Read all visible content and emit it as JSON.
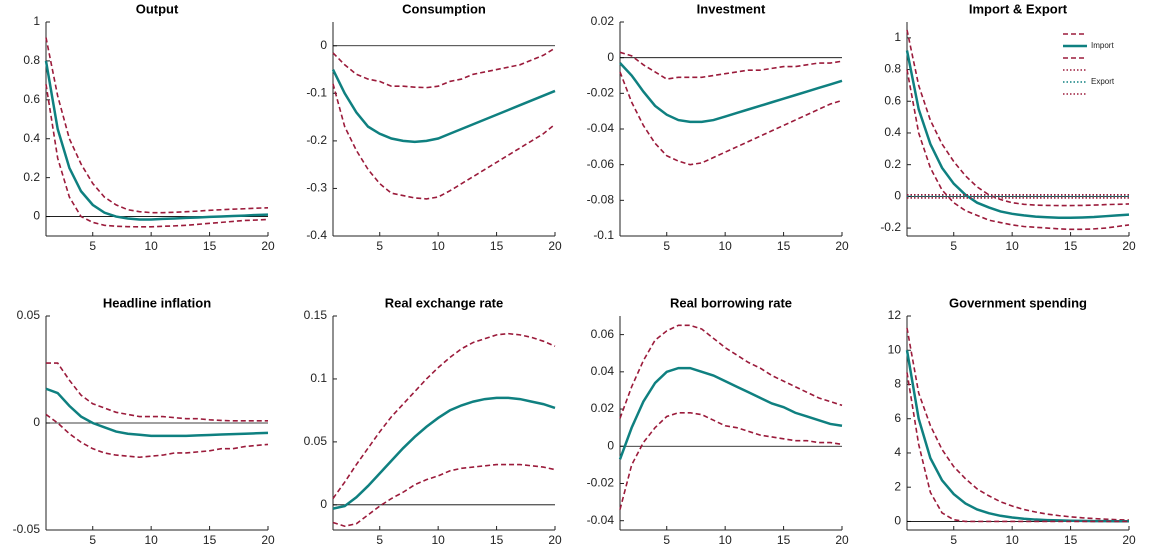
{
  "chart_data": [
    {
      "type": "line",
      "title": "Output",
      "x": [
        1,
        2,
        3,
        4,
        5,
        6,
        7,
        8,
        9,
        10,
        11,
        12,
        13,
        14,
        15,
        16,
        17,
        18,
        19,
        20
      ],
      "xlim": [
        1,
        20
      ],
      "xticks": [
        5,
        10,
        15,
        20
      ],
      "ylim": [
        -0.1,
        1
      ],
      "yticks": [
        0,
        0.2,
        0.4,
        0.6,
        0.8,
        1
      ],
      "series": [
        {
          "style": "dashed",
          "color": "#9b1b3b",
          "values": [
            0.92,
            0.62,
            0.4,
            0.27,
            0.17,
            0.1,
            0.06,
            0.035,
            0.025,
            0.02,
            0.02,
            0.022,
            0.025,
            0.028,
            0.032,
            0.035,
            0.038,
            0.04,
            0.043,
            0.045
          ]
        },
        {
          "style": "solid",
          "color": "#0f8080",
          "values": [
            0.8,
            0.45,
            0.25,
            0.13,
            0.06,
            0.02,
            0,
            -0.01,
            -0.015,
            -0.015,
            -0.012,
            -0.01,
            -0.007,
            -0.005,
            -0.002,
            0,
            0.003,
            0.005,
            0.008,
            0.01
          ]
        },
        {
          "style": "dashed",
          "color": "#9b1b3b",
          "values": [
            0.68,
            0.3,
            0.1,
            0,
            -0.03,
            -0.045,
            -0.05,
            -0.052,
            -0.053,
            -0.053,
            -0.05,
            -0.048,
            -0.045,
            -0.04,
            -0.035,
            -0.03,
            -0.025,
            -0.02,
            -0.018,
            -0.015
          ]
        }
      ]
    },
    {
      "type": "line",
      "title": "Consumption",
      "x": [
        1,
        2,
        3,
        4,
        5,
        6,
        7,
        8,
        9,
        10,
        11,
        12,
        13,
        14,
        15,
        16,
        17,
        18,
        19,
        20
      ],
      "xlim": [
        1,
        20
      ],
      "xticks": [
        5,
        10,
        15,
        20
      ],
      "ylim": [
        -0.4,
        0.05
      ],
      "yticks": [
        -0.4,
        -0.3,
        -0.2,
        -0.1,
        0
      ],
      "series": [
        {
          "style": "dashed",
          "color": "#9b1b3b",
          "values": [
            -0.015,
            -0.04,
            -0.06,
            -0.07,
            -0.075,
            -0.085,
            -0.085,
            -0.087,
            -0.088,
            -0.085,
            -0.075,
            -0.07,
            -0.06,
            -0.055,
            -0.05,
            -0.045,
            -0.04,
            -0.03,
            -0.02,
            -0.005
          ]
        },
        {
          "style": "solid",
          "color": "#0f8080",
          "values": [
            -0.05,
            -0.1,
            -0.14,
            -0.17,
            -0.185,
            -0.195,
            -0.2,
            -0.202,
            -0.2,
            -0.195,
            -0.185,
            -0.175,
            -0.165,
            -0.155,
            -0.145,
            -0.135,
            -0.125,
            -0.115,
            -0.105,
            -0.095
          ]
        },
        {
          "style": "dashed",
          "color": "#9b1b3b",
          "values": [
            -0.08,
            -0.17,
            -0.22,
            -0.26,
            -0.29,
            -0.31,
            -0.315,
            -0.32,
            -0.322,
            -0.318,
            -0.305,
            -0.29,
            -0.275,
            -0.26,
            -0.245,
            -0.23,
            -0.215,
            -0.2,
            -0.185,
            -0.165
          ]
        }
      ]
    },
    {
      "type": "line",
      "title": "Investment",
      "x": [
        1,
        2,
        3,
        4,
        5,
        6,
        7,
        8,
        9,
        10,
        11,
        12,
        13,
        14,
        15,
        16,
        17,
        18,
        19,
        20
      ],
      "xlim": [
        1,
        20
      ],
      "xticks": [
        5,
        10,
        15,
        20
      ],
      "ylim": [
        -0.1,
        0.02
      ],
      "yticks": [
        -0.1,
        -0.08,
        -0.06,
        -0.04,
        -0.02,
        0,
        0.02
      ],
      "series": [
        {
          "style": "dashed",
          "color": "#9b1b3b",
          "values": [
            0.003,
            0.001,
            -0.004,
            -0.008,
            -0.012,
            -0.011,
            -0.011,
            -0.011,
            -0.01,
            -0.009,
            -0.008,
            -0.007,
            -0.007,
            -0.006,
            -0.005,
            -0.005,
            -0.004,
            -0.003,
            -0.003,
            -0.002
          ]
        },
        {
          "style": "solid",
          "color": "#0f8080",
          "values": [
            -0.003,
            -0.01,
            -0.019,
            -0.027,
            -0.032,
            -0.035,
            -0.036,
            -0.036,
            -0.035,
            -0.033,
            -0.031,
            -0.029,
            -0.027,
            -0.025,
            -0.023,
            -0.021,
            -0.019,
            -0.017,
            -0.015,
            -0.013
          ]
        },
        {
          "style": "dashed",
          "color": "#9b1b3b",
          "values": [
            -0.008,
            -0.025,
            -0.038,
            -0.048,
            -0.055,
            -0.058,
            -0.06,
            -0.059,
            -0.056,
            -0.053,
            -0.05,
            -0.047,
            -0.044,
            -0.041,
            -0.038,
            -0.035,
            -0.032,
            -0.029,
            -0.026,
            -0.024
          ]
        }
      ]
    },
    {
      "type": "line",
      "title": "Import & Export",
      "x": [
        1,
        2,
        3,
        4,
        5,
        6,
        7,
        8,
        9,
        10,
        11,
        12,
        13,
        14,
        15,
        16,
        17,
        18,
        19,
        20
      ],
      "xlim": [
        1,
        20
      ],
      "xticks": [
        5,
        10,
        15,
        20
      ],
      "ylim": [
        -0.25,
        1.1
      ],
      "yticks": [
        -0.2,
        0,
        0.2,
        0.4,
        0.6,
        0.8,
        1
      ],
      "legend": "upper right",
      "series": [
        {
          "style": "dashed",
          "color": "#9b1b3b",
          "values": [
            1.05,
            0.7,
            0.48,
            0.33,
            0.22,
            0.13,
            0.06,
            0.01,
            -0.02,
            -0.04,
            -0.05,
            -0.055,
            -0.057,
            -0.058,
            -0.058,
            -0.057,
            -0.055,
            -0.052,
            -0.05,
            -0.048
          ]
        },
        {
          "name": "Import",
          "style": "solid",
          "color": "#0f8080",
          "values": [
            0.92,
            0.55,
            0.33,
            0.18,
            0.08,
            0.01,
            -0.04,
            -0.07,
            -0.095,
            -0.11,
            -0.12,
            -0.128,
            -0.132,
            -0.135,
            -0.135,
            -0.133,
            -0.13,
            -0.125,
            -0.12,
            -0.115
          ]
        },
        {
          "style": "dashed",
          "color": "#9b1b3b",
          "values": [
            0.8,
            0.4,
            0.18,
            0.04,
            -0.04,
            -0.09,
            -0.12,
            -0.15,
            -0.165,
            -0.18,
            -0.19,
            -0.195,
            -0.2,
            -0.205,
            -0.208,
            -0.208,
            -0.205,
            -0.2,
            -0.19,
            -0.18
          ]
        },
        {
          "style": "dotted",
          "color": "#9b1b3b",
          "values": [
            0.01,
            0.01,
            0.01,
            0.01,
            0.01,
            0.01,
            0.01,
            0.01,
            0.01,
            0.01,
            0.01,
            0.01,
            0.01,
            0.01,
            0.01,
            0.01,
            0.01,
            0.01,
            0.01,
            0.01
          ]
        },
        {
          "name": "Export",
          "style": "dotted",
          "color": "#0f8080",
          "values": [
            0,
            0,
            0,
            0,
            0,
            0,
            0,
            0,
            0,
            0,
            0,
            0,
            0,
            0,
            0,
            0,
            0,
            0,
            0,
            0
          ]
        },
        {
          "style": "dotted",
          "color": "#9b1b3b",
          "values": [
            -0.01,
            -0.01,
            -0.01,
            -0.01,
            -0.01,
            -0.01,
            -0.01,
            -0.01,
            -0.01,
            -0.01,
            -0.01,
            -0.01,
            -0.01,
            -0.01,
            -0.01,
            -0.01,
            -0.01,
            -0.01,
            -0.01,
            -0.01
          ]
        }
      ]
    },
    {
      "type": "line",
      "title": "Headline inflation",
      "x": [
        1,
        2,
        3,
        4,
        5,
        6,
        7,
        8,
        9,
        10,
        11,
        12,
        13,
        14,
        15,
        16,
        17,
        18,
        19,
        20
      ],
      "xlim": [
        1,
        20
      ],
      "xticks": [
        5,
        10,
        15,
        20
      ],
      "ylim": [
        -0.05,
        0.05
      ],
      "yticks": [
        -0.05,
        0,
        0.05
      ],
      "series": [
        {
          "style": "dashed",
          "color": "#9b1b3b",
          "values": [
            0.028,
            0.028,
            0.02,
            0.013,
            0.009,
            0.007,
            0.005,
            0.004,
            0.003,
            0.003,
            0.003,
            0.0025,
            0.002,
            0.002,
            0.0015,
            0.0012,
            0.001,
            0.001,
            0.001,
            0.001
          ]
        },
        {
          "style": "solid",
          "color": "#0f8080",
          "values": [
            0.016,
            0.014,
            0.008,
            0.003,
            0,
            -0.002,
            -0.004,
            -0.005,
            -0.0055,
            -0.006,
            -0.006,
            -0.006,
            -0.006,
            -0.0058,
            -0.0056,
            -0.0054,
            -0.0052,
            -0.005,
            -0.0048,
            -0.0046
          ]
        },
        {
          "style": "dashed",
          "color": "#9b1b3b",
          "values": [
            0.004,
            0,
            -0.005,
            -0.009,
            -0.012,
            -0.014,
            -0.015,
            -0.0155,
            -0.016,
            -0.0155,
            -0.015,
            -0.014,
            -0.014,
            -0.0135,
            -0.013,
            -0.012,
            -0.012,
            -0.011,
            -0.0105,
            -0.01
          ]
        }
      ]
    },
    {
      "type": "line",
      "title": "Real exchange rate",
      "x": [
        1,
        2,
        3,
        4,
        5,
        6,
        7,
        8,
        9,
        10,
        11,
        12,
        13,
        14,
        15,
        16,
        17,
        18,
        19,
        20
      ],
      "xlim": [
        1,
        20
      ],
      "xticks": [
        5,
        10,
        15,
        20
      ],
      "ylim": [
        -0.02,
        0.15
      ],
      "yticks": [
        0,
        0.05,
        0.1,
        0.15
      ],
      "series": [
        {
          "style": "dashed",
          "color": "#9b1b3b",
          "values": [
            0.005,
            0.018,
            0.032,
            0.045,
            0.058,
            0.07,
            0.08,
            0.09,
            0.1,
            0.109,
            0.117,
            0.124,
            0.129,
            0.132,
            0.135,
            0.136,
            0.135,
            0.133,
            0.13,
            0.126
          ]
        },
        {
          "style": "solid",
          "color": "#0f8080",
          "values": [
            -0.003,
            -0.001,
            0.006,
            0.015,
            0.025,
            0.035,
            0.045,
            0.054,
            0.062,
            0.069,
            0.075,
            0.079,
            0.082,
            0.084,
            0.085,
            0.085,
            0.084,
            0.082,
            0.08,
            0.077
          ]
        },
        {
          "style": "dashed",
          "color": "#9b1b3b",
          "values": [
            -0.014,
            -0.017,
            -0.015,
            -0.008,
            -0.001,
            0.005,
            0.01,
            0.016,
            0.02,
            0.023,
            0.027,
            0.029,
            0.03,
            0.031,
            0.032,
            0.032,
            0.032,
            0.031,
            0.03,
            0.028
          ]
        }
      ]
    },
    {
      "type": "line",
      "title": "Real borrowing rate",
      "x": [
        1,
        2,
        3,
        4,
        5,
        6,
        7,
        8,
        9,
        10,
        11,
        12,
        13,
        14,
        15,
        16,
        17,
        18,
        19,
        20
      ],
      "xlim": [
        1,
        20
      ],
      "xticks": [
        5,
        10,
        15,
        20
      ],
      "ylim": [
        -0.045,
        0.07
      ],
      "yticks": [
        -0.04,
        -0.02,
        0,
        0.02,
        0.04,
        0.06
      ],
      "series": [
        {
          "style": "dashed",
          "color": "#9b1b3b",
          "values": [
            0.015,
            0.032,
            0.046,
            0.057,
            0.062,
            0.065,
            0.065,
            0.063,
            0.058,
            0.053,
            0.049,
            0.045,
            0.042,
            0.038,
            0.035,
            0.032,
            0.029,
            0.026,
            0.024,
            0.022
          ]
        },
        {
          "style": "solid",
          "color": "#0f8080",
          "values": [
            -0.007,
            0.01,
            0.024,
            0.034,
            0.04,
            0.042,
            0.042,
            0.04,
            0.038,
            0.035,
            0.032,
            0.029,
            0.026,
            0.023,
            0.021,
            0.018,
            0.016,
            0.014,
            0.012,
            0.011
          ]
        },
        {
          "style": "dashed",
          "color": "#9b1b3b",
          "values": [
            -0.034,
            -0.01,
            0.002,
            0.01,
            0.016,
            0.018,
            0.018,
            0.017,
            0.014,
            0.011,
            0.01,
            0.008,
            0.006,
            0.005,
            0.004,
            0.003,
            0.003,
            0.002,
            0.002,
            0.001
          ]
        }
      ]
    },
    {
      "type": "line",
      "title": "Government spending",
      "x": [
        1,
        2,
        3,
        4,
        5,
        6,
        7,
        8,
        9,
        10,
        11,
        12,
        13,
        14,
        15,
        16,
        17,
        18,
        19,
        20
      ],
      "xlim": [
        1,
        20
      ],
      "xticks": [
        5,
        10,
        15,
        20
      ],
      "ylim": [
        -0.5,
        12
      ],
      "yticks": [
        0,
        2,
        4,
        6,
        8,
        10,
        12
      ],
      "series": [
        {
          "style": "dashed",
          "color": "#9b1b3b",
          "values": [
            11.3,
            7.5,
            5.6,
            4.2,
            3.2,
            2.5,
            1.9,
            1.5,
            1.15,
            0.9,
            0.7,
            0.55,
            0.43,
            0.34,
            0.27,
            0.21,
            0.17,
            0.13,
            0.1,
            0.08
          ]
        },
        {
          "style": "solid",
          "color": "#0f8080",
          "values": [
            10,
            6,
            3.7,
            2.4,
            1.6,
            1.05,
            0.7,
            0.48,
            0.33,
            0.23,
            0.16,
            0.11,
            0.08,
            0.06,
            0.04,
            0.03,
            0.02,
            0.015,
            0.01,
            0.01
          ]
        },
        {
          "style": "dashed",
          "color": "#9b1b3b",
          "values": [
            8.7,
            4.5,
            1.7,
            0.5,
            0.1,
            0,
            0,
            0,
            0,
            0,
            0,
            0,
            0,
            0,
            0,
            0,
            0,
            0,
            0,
            0
          ]
        }
      ]
    }
  ]
}
